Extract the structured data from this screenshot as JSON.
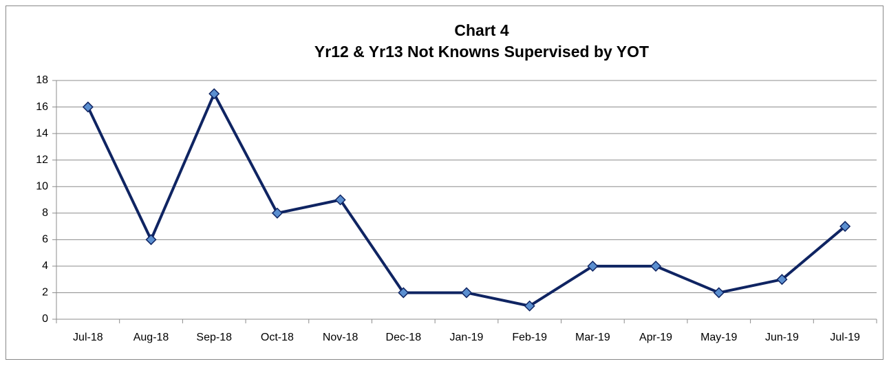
{
  "chart_data": {
    "type": "line",
    "title": "Chart 4",
    "subtitle": "Yr12 & Yr13 Not Knowns Supervised by YOT",
    "categories": [
      "Jul-18",
      "Aug-18",
      "Sep-18",
      "Oct-18",
      "Nov-18",
      "Dec-18",
      "Jan-19",
      "Feb-19",
      "Mar-19",
      "Apr-19",
      "May-19",
      "Jun-19",
      "Jul-19"
    ],
    "values": [
      16,
      6,
      17,
      8,
      9,
      2,
      2,
      1,
      4,
      4,
      2,
      3,
      7
    ],
    "color": "#0f2462",
    "marker_color": "#5b8fd0",
    "ylim": [
      0,
      18
    ],
    "yticks": [
      0,
      2,
      4,
      6,
      8,
      10,
      12,
      14,
      16,
      18
    ],
    "grid": true
  }
}
